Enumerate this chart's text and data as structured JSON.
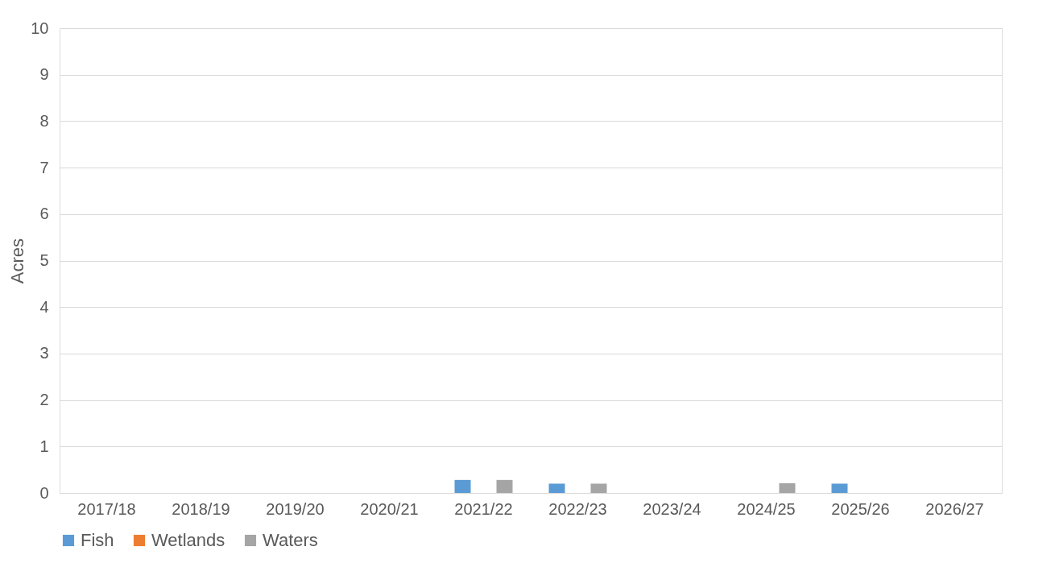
{
  "chart_data": {
    "type": "bar",
    "ylabel": "Acres",
    "categories": [
      "2017/18",
      "2018/19",
      "2019/20",
      "2020/21",
      "2021/22",
      "2022/23",
      "2023/24",
      "2024/25",
      "2025/26",
      "2026/27"
    ],
    "series": [
      {
        "name": "Fish",
        "color": "#5b9bd5",
        "values": [
          null,
          null,
          null,
          null,
          0.28,
          0.2,
          null,
          null,
          0.2,
          null
        ]
      },
      {
        "name": "Wetlands",
        "color": "#ed7d31",
        "values": [
          null,
          null,
          null,
          null,
          null,
          null,
          null,
          null,
          null,
          null
        ]
      },
      {
        "name": "Waters",
        "color": "#a5a5a5",
        "values": [
          null,
          null,
          null,
          null,
          0.28,
          0.2,
          null,
          0.21,
          null,
          null
        ]
      }
    ],
    "ylim": [
      0,
      10
    ],
    "yticks": [
      0,
      1,
      2,
      3,
      4,
      5,
      6,
      7,
      8,
      9,
      10
    ],
    "grid": "y",
    "legend": "bottom"
  }
}
